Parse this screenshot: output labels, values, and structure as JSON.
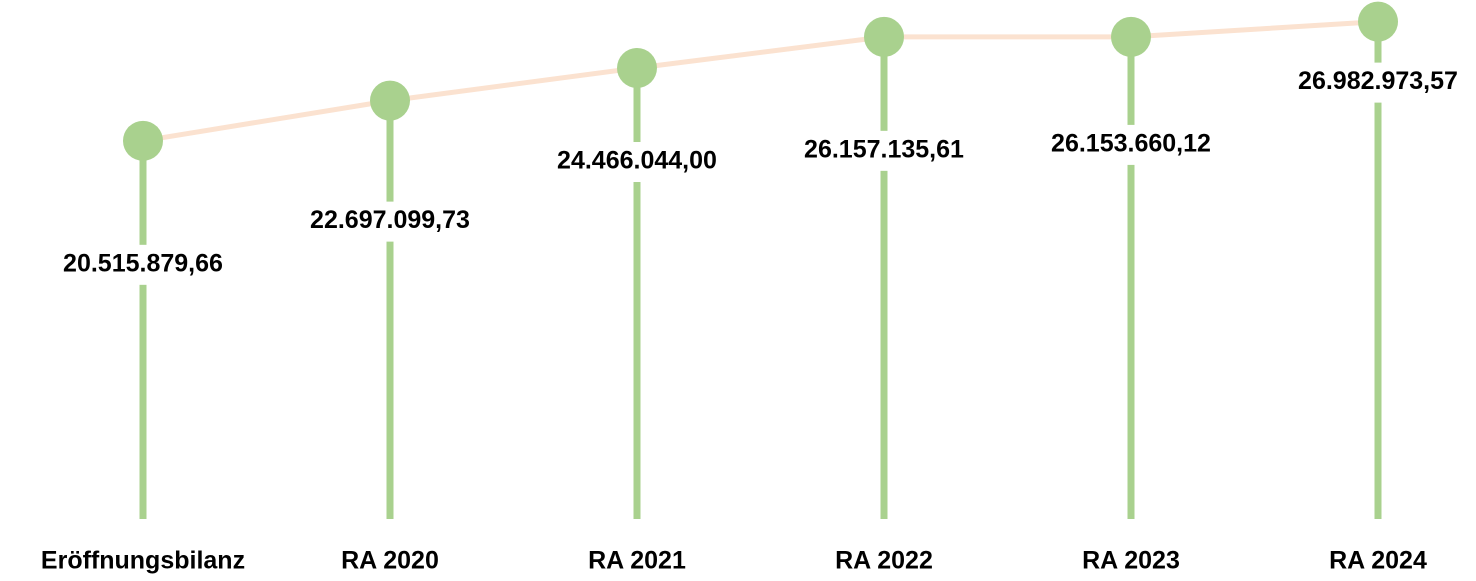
{
  "chart_data": {
    "type": "lollipop",
    "categories": [
      "Eröffnungsbilanz",
      "RA 2020",
      "RA 2021",
      "RA 2022",
      "RA 2023",
      "RA 2024"
    ],
    "values": [
      20515879.66,
      22697099.73,
      24466044.0,
      26157135.61,
      26153660.12,
      26982973.57
    ],
    "value_labels": [
      "20.515.879,66",
      "22.697.099,73",
      "24.466.044,00",
      "26.157.135,61",
      "26.153.660,12",
      "26.982.973,57"
    ],
    "ylim": [
      0,
      30000000
    ],
    "color": "#a9d18e",
    "line_color": "#fbe2d0"
  }
}
